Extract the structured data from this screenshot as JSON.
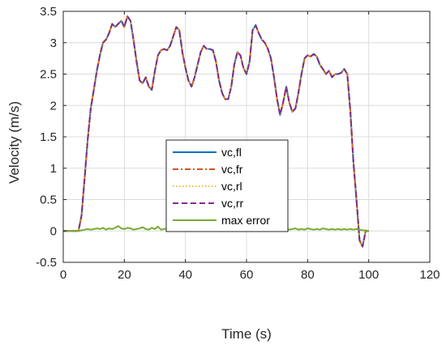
{
  "chart_data": {
    "type": "line",
    "title": "",
    "xlabel": "Time (s)",
    "ylabel": "Velocity (m/s)",
    "xlim": [
      0,
      120
    ],
    "ylim": [
      -0.5,
      3.5
    ],
    "xticks": [
      0,
      20,
      40,
      60,
      80,
      100,
      120
    ],
    "yticks": [
      -0.5,
      0,
      0.5,
      1,
      1.5,
      2,
      2.5,
      3,
      3.5
    ],
    "xtick_labels": [
      "0",
      "20",
      "40",
      "60",
      "80",
      "100",
      "120"
    ],
    "ytick_labels": [
      "-0.5",
      "0",
      "0.5",
      "1",
      "1.5",
      "2",
      "2.5",
      "3",
      "3.5"
    ],
    "grid": true,
    "legend_position": "center-left",
    "x": [
      0,
      5,
      6,
      7,
      8,
      9,
      10,
      11,
      12,
      13,
      14,
      15,
      16,
      17,
      18,
      19,
      20,
      21,
      22,
      23,
      24,
      25,
      26,
      27,
      28,
      29,
      30,
      31,
      32,
      33,
      34,
      35,
      36,
      37,
      38,
      39,
      40,
      41,
      42,
      43,
      44,
      45,
      46,
      47,
      48,
      49,
      50,
      51,
      52,
      53,
      54,
      55,
      56,
      57,
      58,
      59,
      60,
      61,
      62,
      63,
      64,
      65,
      66,
      67,
      68,
      69,
      70,
      71,
      72,
      73,
      74,
      75,
      76,
      77,
      78,
      79,
      80,
      81,
      82,
      83,
      84,
      85,
      86,
      87,
      88,
      89,
      90,
      91,
      92,
      93,
      94,
      95,
      96,
      97,
      98,
      99,
      100
    ],
    "series": [
      {
        "name": "vc,fl",
        "color": "#0072BD",
        "dash": "solid",
        "values": [
          0,
          0,
          0.25,
          0.85,
          1.45,
          1.95,
          2.25,
          2.55,
          2.8,
          3.0,
          3.05,
          3.15,
          3.3,
          3.25,
          3.3,
          3.35,
          3.25,
          3.42,
          3.35,
          3.05,
          2.7,
          2.4,
          2.35,
          2.45,
          2.3,
          2.25,
          2.55,
          2.8,
          2.88,
          2.9,
          2.88,
          2.95,
          3.1,
          3.25,
          3.2,
          2.85,
          2.6,
          2.4,
          2.3,
          2.45,
          2.65,
          2.85,
          2.95,
          2.9,
          2.9,
          2.88,
          2.7,
          2.4,
          2.2,
          2.1,
          2.1,
          2.3,
          2.65,
          2.85,
          2.8,
          2.6,
          2.5,
          2.7,
          3.2,
          3.28,
          3.15,
          3.05,
          3.0,
          2.9,
          2.75,
          2.45,
          2.1,
          1.85,
          2.05,
          2.3,
          2.05,
          1.9,
          1.95,
          2.2,
          2.5,
          2.75,
          2.8,
          2.78,
          2.82,
          2.78,
          2.65,
          2.58,
          2.5,
          2.55,
          2.45,
          2.5,
          2.5,
          2.52,
          2.58,
          2.5,
          1.9,
          1.1,
          0.5,
          -0.15,
          -0.25,
          0,
          0
        ]
      },
      {
        "name": "vc,fr",
        "color": "#D95319",
        "dash": "dashdot",
        "values": [
          0,
          0,
          0.25,
          0.85,
          1.45,
          1.95,
          2.25,
          2.55,
          2.8,
          3.0,
          3.05,
          3.15,
          3.3,
          3.25,
          3.3,
          3.35,
          3.25,
          3.42,
          3.35,
          3.05,
          2.7,
          2.4,
          2.35,
          2.45,
          2.3,
          2.25,
          2.55,
          2.8,
          2.88,
          2.9,
          2.88,
          2.95,
          3.1,
          3.25,
          3.2,
          2.85,
          2.6,
          2.4,
          2.3,
          2.45,
          2.65,
          2.85,
          2.95,
          2.9,
          2.9,
          2.88,
          2.7,
          2.4,
          2.2,
          2.1,
          2.1,
          2.3,
          2.65,
          2.85,
          2.8,
          2.6,
          2.5,
          2.7,
          3.2,
          3.28,
          3.15,
          3.05,
          3.0,
          2.9,
          2.75,
          2.45,
          2.1,
          1.85,
          2.05,
          2.3,
          2.05,
          1.9,
          1.95,
          2.2,
          2.5,
          2.75,
          2.8,
          2.78,
          2.82,
          2.78,
          2.65,
          2.58,
          2.5,
          2.55,
          2.45,
          2.5,
          2.5,
          2.52,
          2.58,
          2.5,
          1.9,
          1.1,
          0.5,
          -0.15,
          -0.25,
          0,
          0
        ]
      },
      {
        "name": "vc,rl",
        "color": "#EDB120",
        "dash": "dotted",
        "values": [
          0,
          0,
          0.25,
          0.85,
          1.45,
          1.95,
          2.25,
          2.55,
          2.8,
          3.0,
          3.05,
          3.15,
          3.3,
          3.25,
          3.3,
          3.35,
          3.25,
          3.42,
          3.35,
          3.05,
          2.7,
          2.4,
          2.35,
          2.45,
          2.3,
          2.25,
          2.55,
          2.8,
          2.88,
          2.9,
          2.88,
          2.95,
          3.1,
          3.25,
          3.2,
          2.85,
          2.6,
          2.4,
          2.3,
          2.45,
          2.65,
          2.85,
          2.95,
          2.9,
          2.9,
          2.88,
          2.7,
          2.4,
          2.2,
          2.1,
          2.1,
          2.3,
          2.65,
          2.85,
          2.8,
          2.6,
          2.5,
          2.7,
          3.2,
          3.28,
          3.15,
          3.05,
          3.0,
          2.9,
          2.75,
          2.45,
          2.1,
          1.85,
          2.05,
          2.3,
          2.05,
          1.9,
          1.95,
          2.2,
          2.5,
          2.75,
          2.8,
          2.78,
          2.82,
          2.78,
          2.65,
          2.58,
          2.5,
          2.55,
          2.45,
          2.5,
          2.5,
          2.52,
          2.58,
          2.5,
          1.9,
          1.1,
          0.5,
          -0.15,
          -0.25,
          0,
          0
        ]
      },
      {
        "name": "vc,rr",
        "color": "#7E2F8E",
        "dash": "dashed",
        "values": [
          0,
          0,
          0.25,
          0.85,
          1.45,
          1.95,
          2.25,
          2.55,
          2.8,
          3.0,
          3.05,
          3.15,
          3.3,
          3.25,
          3.3,
          3.35,
          3.25,
          3.42,
          3.35,
          3.05,
          2.7,
          2.4,
          2.35,
          2.45,
          2.3,
          2.25,
          2.55,
          2.8,
          2.88,
          2.9,
          2.88,
          2.95,
          3.1,
          3.25,
          3.2,
          2.85,
          2.6,
          2.4,
          2.3,
          2.45,
          2.65,
          2.85,
          2.95,
          2.9,
          2.9,
          2.88,
          2.7,
          2.4,
          2.2,
          2.1,
          2.1,
          2.3,
          2.65,
          2.85,
          2.8,
          2.6,
          2.5,
          2.7,
          3.2,
          3.28,
          3.15,
          3.05,
          3.0,
          2.9,
          2.75,
          2.45,
          2.1,
          1.85,
          2.05,
          2.3,
          2.05,
          1.9,
          1.95,
          2.2,
          2.5,
          2.75,
          2.8,
          2.78,
          2.82,
          2.78,
          2.65,
          2.58,
          2.5,
          2.55,
          2.45,
          2.5,
          2.5,
          2.52,
          2.58,
          2.5,
          1.9,
          1.1,
          0.5,
          -0.15,
          -0.25,
          0,
          0
        ]
      },
      {
        "name": "max error",
        "color": "#77AC30",
        "dash": "solid",
        "values": [
          0,
          0,
          0.01,
          0.02,
          0.03,
          0.02,
          0.03,
          0.04,
          0.03,
          0.05,
          0.02,
          0.04,
          0.03,
          0.05,
          0.08,
          0.04,
          0.03,
          0.05,
          0.04,
          0.02,
          0.03,
          0.04,
          0.06,
          0.03,
          0.02,
          0.05,
          0.03,
          0.07,
          0.02,
          0.03,
          0.04,
          0.02,
          0.03,
          0.05,
          0.02,
          0.03,
          0.04,
          0.02,
          0.03,
          0.03,
          0.02,
          0.04,
          0.03,
          0.02,
          0.03,
          0.05,
          0.02,
          0.03,
          0.02,
          0.04,
          0.03,
          0.02,
          0.04,
          0.03,
          0.05,
          0.03,
          0.02,
          0.1,
          0.05,
          0.03,
          0.04,
          0.02,
          0.03,
          0.05,
          0.02,
          0.04,
          0.03,
          0.02,
          0.03,
          0.04,
          0.02,
          0.03,
          0.04,
          0.02,
          0.03,
          0.02,
          0.04,
          0.03,
          0.02,
          0.03,
          0.02,
          0.04,
          0.03,
          0.02,
          0.03,
          0.02,
          0.03,
          0.02,
          0.03,
          0.02,
          0.03,
          0.02,
          0.03,
          0.02,
          0.01,
          0.01,
          0
        ]
      }
    ]
  }
}
